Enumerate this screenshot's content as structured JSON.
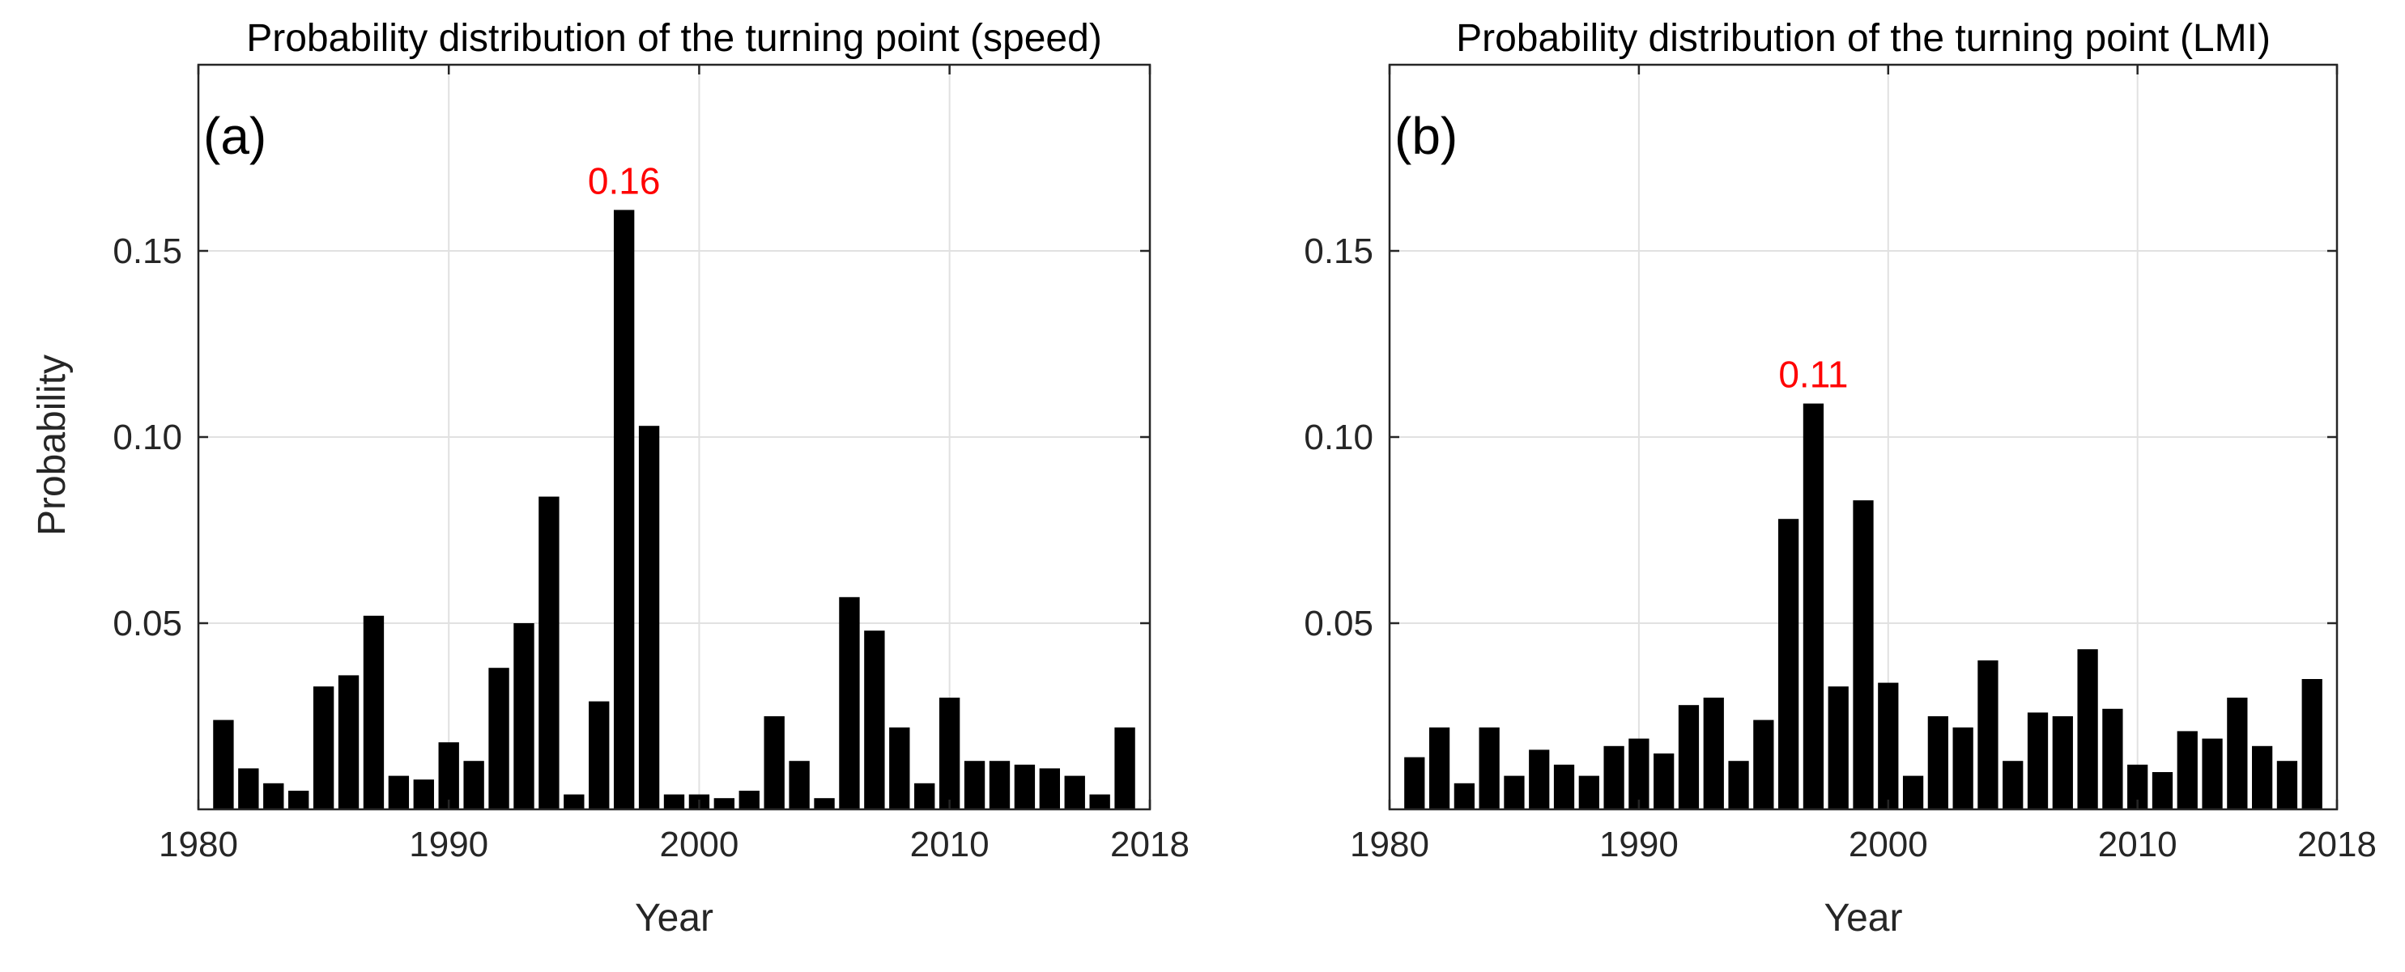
{
  "chart_data": [
    {
      "type": "bar",
      "panel_label": "(a)",
      "title": "Probability distribution of the turning point (speed)",
      "xlabel": "Year",
      "ylabel": "Probability",
      "xlim": [
        1980,
        2018
      ],
      "ylim": [
        0,
        0.2
      ],
      "xticks": [
        1980,
        1990,
        2000,
        2010,
        2018
      ],
      "yticks": [
        0.05,
        0.1,
        0.15
      ],
      "ytick_labels": [
        "0.05",
        "0.10",
        "0.15"
      ],
      "grid": true,
      "bar_color": "#000000",
      "x": [
        1981,
        1982,
        1983,
        1984,
        1985,
        1986,
        1987,
        1988,
        1989,
        1990,
        1991,
        1992,
        1993,
        1994,
        1995,
        1996,
        1997,
        1998,
        1999,
        2000,
        2001,
        2002,
        2003,
        2004,
        2005,
        2006,
        2007,
        2008,
        2009,
        2010,
        2011,
        2012,
        2013,
        2014,
        2015,
        2016,
        2017
      ],
      "values": [
        0.024,
        0.011,
        0.007,
        0.005,
        0.033,
        0.036,
        0.052,
        0.009,
        0.008,
        0.018,
        0.013,
        0.038,
        0.05,
        0.084,
        0.004,
        0.029,
        0.161,
        0.103,
        0.004,
        0.004,
        0.003,
        0.005,
        0.025,
        0.013,
        0.003,
        0.057,
        0.048,
        0.022,
        0.007,
        0.03,
        0.013,
        0.013,
        0.012,
        0.011,
        0.009,
        0.004,
        0.022
      ],
      "annotation": {
        "text": "0.16",
        "x": 1997,
        "y": 0.161,
        "color": "#ff0000"
      }
    },
    {
      "type": "bar",
      "panel_label": "(b)",
      "title": "Probability distribution of the turning point (LMI)",
      "xlabel": "Year",
      "ylabel": "",
      "xlim": [
        1980,
        2018
      ],
      "ylim": [
        0,
        0.2
      ],
      "xticks": [
        1980,
        1990,
        2000,
        2010,
        2018
      ],
      "yticks": [
        0.05,
        0.1,
        0.15
      ],
      "ytick_labels": [
        "0.05",
        "0.10",
        "0.15"
      ],
      "grid": true,
      "bar_color": "#000000",
      "x": [
        1981,
        1982,
        1983,
        1984,
        1985,
        1986,
        1987,
        1988,
        1989,
        1990,
        1991,
        1992,
        1993,
        1994,
        1995,
        1996,
        1997,
        1998,
        1999,
        2000,
        2001,
        2002,
        2003,
        2004,
        2005,
        2006,
        2007,
        2008,
        2009,
        2010,
        2011,
        2012,
        2013,
        2014,
        2015,
        2016,
        2017
      ],
      "values": [
        0.014,
        0.022,
        0.007,
        0.022,
        0.009,
        0.016,
        0.012,
        0.009,
        0.017,
        0.019,
        0.015,
        0.028,
        0.03,
        0.013,
        0.024,
        0.078,
        0.109,
        0.033,
        0.083,
        0.034,
        0.009,
        0.025,
        0.022,
        0.04,
        0.013,
        0.026,
        0.025,
        0.043,
        0.027,
        0.012,
        0.01,
        0.021,
        0.019,
        0.03,
        0.017,
        0.013,
        0.035
      ],
      "annotation": {
        "text": "0.11",
        "x": 1997,
        "y": 0.109,
        "color": "#ff0000"
      }
    }
  ]
}
